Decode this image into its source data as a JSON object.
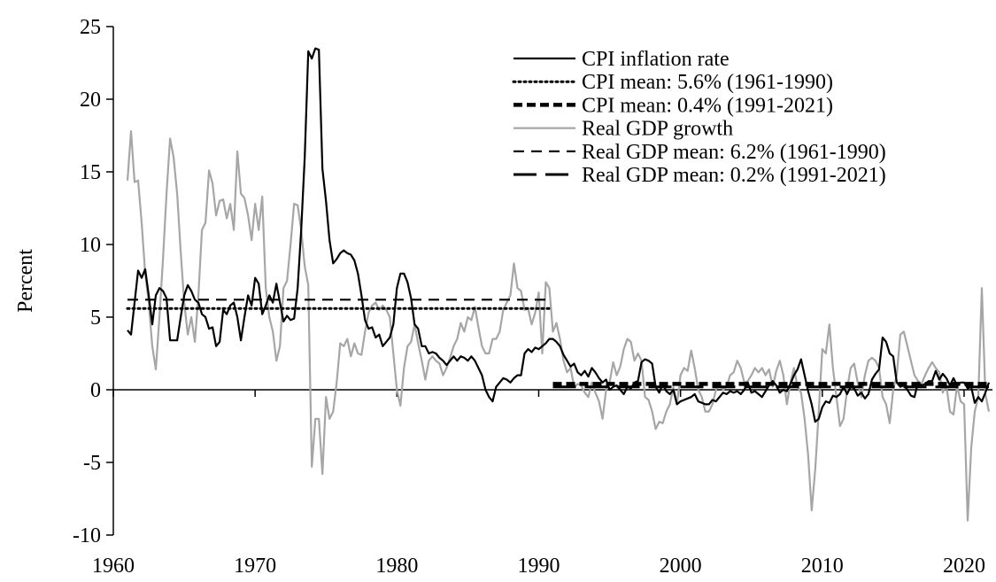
{
  "chart_data": {
    "type": "line",
    "ylabel": "Percent",
    "xlim": [
      1960,
      2022
    ],
    "ylim": [
      -10,
      25
    ],
    "xticks": [
      1960,
      1970,
      1980,
      1990,
      2000,
      2010,
      2020
    ],
    "yticks": [
      -10,
      -5,
      0,
      5,
      10,
      15,
      20,
      25
    ],
    "legend": "upper right",
    "x": [
      1961,
      1961.25,
      1961.5,
      1961.75,
      1962,
      1962.25,
      1962.5,
      1962.75,
      1963,
      1963.25,
      1963.5,
      1963.75,
      1964,
      1964.25,
      1964.5,
      1964.75,
      1965,
      1965.25,
      1965.5,
      1965.75,
      1966,
      1966.25,
      1966.5,
      1966.75,
      1967,
      1967.25,
      1967.5,
      1967.75,
      1968,
      1968.25,
      1968.5,
      1968.75,
      1969,
      1969.25,
      1969.5,
      1969.75,
      1970,
      1970.25,
      1970.5,
      1970.75,
      1971,
      1971.25,
      1971.5,
      1971.75,
      1972,
      1972.25,
      1972.5,
      1972.75,
      1973,
      1973.25,
      1973.5,
      1973.75,
      1974,
      1974.25,
      1974.5,
      1974.75,
      1975,
      1975.25,
      1975.5,
      1975.75,
      1976,
      1976.25,
      1976.5,
      1976.75,
      1977,
      1977.25,
      1977.5,
      1977.75,
      1978,
      1978.25,
      1978.5,
      1978.75,
      1979,
      1979.25,
      1979.5,
      1979.75,
      1980,
      1980.25,
      1980.5,
      1980.75,
      1981,
      1981.25,
      1981.5,
      1981.75,
      1982,
      1982.25,
      1982.5,
      1982.75,
      1983,
      1983.25,
      1983.5,
      1983.75,
      1984,
      1984.25,
      1984.5,
      1984.75,
      1985,
      1985.25,
      1985.5,
      1985.75,
      1986,
      1986.25,
      1986.5,
      1986.75,
      1987,
      1987.25,
      1987.5,
      1987.75,
      1988,
      1988.25,
      1988.5,
      1988.75,
      1989,
      1989.25,
      1989.5,
      1989.75,
      1990,
      1990.25,
      1990.5,
      1990.75,
      1991,
      1991.25,
      1991.5,
      1991.75,
      1992,
      1992.25,
      1992.5,
      1992.75,
      1993,
      1993.25,
      1993.5,
      1993.75,
      1994,
      1994.25,
      1994.5,
      1994.75,
      1995,
      1995.25,
      1995.5,
      1995.75,
      1996,
      1996.25,
      1996.5,
      1996.75,
      1997,
      1997.25,
      1997.5,
      1997.75,
      1998,
      1998.25,
      1998.5,
      1998.75,
      1999,
      1999.25,
      1999.5,
      1999.75,
      2000,
      2000.25,
      2000.5,
      2000.75,
      2001,
      2001.25,
      2001.5,
      2001.75,
      2002,
      2002.25,
      2002.5,
      2002.75,
      2003,
      2003.25,
      2003.5,
      2003.75,
      2004,
      2004.25,
      2004.5,
      2004.75,
      2005,
      2005.25,
      2005.5,
      2005.75,
      2006,
      2006.25,
      2006.5,
      2006.75,
      2007,
      2007.25,
      2007.5,
      2007.75,
      2008,
      2008.25,
      2008.5,
      2008.75,
      2009,
      2009.25,
      2009.5,
      2009.75,
      2010,
      2010.25,
      2010.5,
      2010.75,
      2011,
      2011.25,
      2011.5,
      2011.75,
      2012,
      2012.25,
      2012.5,
      2012.75,
      2013,
      2013.25,
      2013.5,
      2013.75,
      2014,
      2014.25,
      2014.5,
      2014.75,
      2015,
      2015.25,
      2015.5,
      2015.75,
      2016,
      2016.25,
      2016.5,
      2016.75,
      2017,
      2017.25,
      2017.5,
      2017.75,
      2018,
      2018.25,
      2018.5,
      2018.75,
      2019,
      2019.25,
      2019.5,
      2019.75,
      2020,
      2020.25,
      2020.5,
      2020.75,
      2021,
      2021.25,
      2021.5,
      2021.75
    ],
    "series": [
      {
        "name": "CPI inflation rate",
        "color": "#000000",
        "style": "solid",
        "values": [
          4.1,
          3.8,
          6.0,
          8.2,
          7.7,
          8.3,
          6.5,
          4.5,
          6.5,
          7.0,
          6.8,
          6.3,
          3.4,
          3.4,
          3.4,
          5.0,
          6.5,
          7.2,
          6.8,
          6.2,
          6.0,
          5.2,
          5.0,
          4.2,
          4.3,
          3.0,
          3.3,
          5.5,
          5.2,
          5.8,
          6.0,
          5.0,
          3.4,
          5.0,
          6.5,
          5.8,
          7.7,
          7.3,
          5.2,
          5.8,
          6.5,
          6.0,
          7.3,
          6.0,
          4.7,
          5.1,
          4.8,
          4.9,
          7.0,
          11.0,
          16.0,
          23.3,
          22.8,
          23.5,
          23.4,
          15.2,
          13.0,
          10.3,
          8.7,
          9.0,
          9.4,
          9.6,
          9.4,
          9.3,
          8.9,
          8.0,
          6.5,
          4.8,
          4.2,
          4.3,
          3.6,
          3.8,
          3.0,
          3.3,
          3.6,
          4.5,
          7.0,
          8.0,
          8.0,
          7.4,
          6.3,
          4.5,
          4.2,
          3.0,
          3.0,
          2.5,
          2.6,
          2.5,
          2.2,
          2.0,
          1.7,
          2.0,
          2.3,
          2.0,
          2.3,
          2.2,
          2.0,
          2.3,
          2.0,
          1.5,
          1.0,
          0.0,
          -0.5,
          -0.8,
          0.2,
          0.5,
          0.8,
          0.7,
          0.5,
          0.8,
          1.0,
          1.0,
          2.5,
          2.8,
          2.6,
          2.9,
          2.8,
          3.0,
          3.2,
          3.5,
          3.5,
          3.3,
          3.0,
          2.4,
          2.0,
          1.6,
          1.8,
          1.2,
          1.0,
          1.3,
          0.9,
          1.5,
          1.2,
          0.8,
          0.5,
          0.7,
          0.0,
          0.2,
          0.3,
          0.0,
          -0.3,
          0.2,
          0.1,
          0.5,
          0.6,
          1.9,
          2.1,
          2.0,
          1.8,
          0.2,
          -0.2,
          0.4,
          -0.1,
          -0.3,
          0.0,
          -1.0,
          -0.8,
          -0.7,
          -0.6,
          -0.5,
          -0.3,
          -0.8,
          -0.9,
          -1.0,
          -1.0,
          -0.7,
          -0.8,
          -0.5,
          -0.2,
          -0.3,
          -0.1,
          -0.2,
          -0.1,
          -0.3,
          0.0,
          0.5,
          -0.2,
          -0.1,
          -0.3,
          -0.5,
          -0.1,
          0.3,
          0.6,
          0.3,
          -0.2,
          0.0,
          -0.1,
          0.4,
          1.0,
          1.4,
          2.1,
          1.0,
          -0.1,
          -1.0,
          -2.2,
          -2.0,
          -1.2,
          -0.8,
          -0.9,
          -0.4,
          -0.5,
          -0.3,
          0.2,
          -0.3,
          0.2,
          0.1,
          -0.4,
          -0.2,
          -0.6,
          -0.3,
          0.7,
          1.1,
          1.4,
          3.6,
          3.3,
          2.5,
          2.3,
          0.5,
          0.2,
          0.3,
          0.0,
          -0.4,
          -0.5,
          0.5,
          0.3,
          0.4,
          0.6,
          0.6,
          1.3,
          0.7,
          1.1,
          0.8,
          0.3,
          0.8,
          0.3,
          0.5,
          0.5,
          0.1,
          0.2,
          -0.9,
          -0.5,
          -0.8,
          -0.2,
          0.5
        ]
      },
      {
        "name": "CPI mean: 5.6% (1961-1990)",
        "color": "#000000",
        "style": "dotted",
        "x": [
          1961,
          1990.75
        ],
        "values": [
          5.6,
          5.6
        ]
      },
      {
        "name": "CPI mean: 0.4% (1991-2021)",
        "color": "#000000",
        "style": "bold-dashed",
        "x": [
          1991,
          2021.75
        ],
        "values": [
          0.4,
          0.4
        ]
      },
      {
        "name": "Real GDP growth",
        "color": "#a6a6a6",
        "style": "solid",
        "values": [
          14.4,
          17.8,
          14.3,
          14.4,
          11.5,
          8.0,
          6.0,
          3.0,
          1.4,
          5.0,
          9.0,
          13.5,
          17.3,
          16.0,
          13.5,
          9.5,
          6.0,
          3.8,
          5.0,
          3.3,
          6.5,
          11.0,
          11.5,
          15.1,
          14.2,
          12.0,
          13.0,
          13.1,
          11.8,
          12.8,
          11.0,
          16.4,
          13.5,
          13.2,
          12.0,
          10.3,
          12.8,
          11.0,
          13.3,
          7.0,
          5.0,
          4.0,
          2.0,
          3.0,
          7.0,
          7.5,
          10.0,
          12.8,
          12.7,
          11.0,
          8.5,
          7.2,
          -5.3,
          -2.0,
          -2.0,
          -5.8,
          -0.5,
          -2.0,
          -1.5,
          0.5,
          3.2,
          3.0,
          3.5,
          2.3,
          3.2,
          2.5,
          2.4,
          4.0,
          5.3,
          5.8,
          6.0,
          5.5,
          5.8,
          5.5,
          5.0,
          2.5,
          0.0,
          -1.1,
          1.5,
          3.0,
          3.3,
          4.5,
          3.2,
          2.0,
          0.7,
          2.0,
          2.3,
          2.0,
          1.8,
          1.0,
          1.5,
          2.2,
          3.0,
          3.5,
          4.6,
          4.0,
          5.0,
          4.8,
          5.7,
          4.3,
          3.0,
          2.5,
          2.5,
          3.5,
          3.5,
          4.0,
          5.5,
          6.0,
          6.5,
          8.7,
          7.0,
          6.8,
          5.5,
          5.6,
          4.5,
          5.3,
          6.7,
          2.5,
          7.4,
          7.0,
          4.0,
          4.6,
          3.5,
          2.0,
          1.2,
          1.5,
          0.2,
          0.4,
          0.3,
          -0.2,
          -0.5,
          0.5,
          -0.2,
          -0.8,
          -2.0,
          0.0,
          0.5,
          1.9,
          1.0,
          1.6,
          2.8,
          3.5,
          3.3,
          2.0,
          2.5,
          2.0,
          -0.5,
          -0.7,
          -1.5,
          -2.7,
          -2.2,
          -2.3,
          -1.5,
          -1.0,
          0.2,
          -1.0,
          1.0,
          1.5,
          1.3,
          2.7,
          1.5,
          0.0,
          -0.5,
          -1.5,
          -1.5,
          -1.0,
          0.0,
          0.5,
          0.0,
          0.2,
          1.0,
          1.2,
          2.0,
          1.5,
          0.5,
          0.6,
          1.0,
          1.5,
          1.2,
          1.5,
          1.0,
          1.4,
          0.2,
          1.3,
          2.0,
          1.0,
          -1.0,
          0.5,
          1.5,
          0.2,
          -0.2,
          -2.0,
          -4.5,
          -8.3,
          -5.5,
          -1.5,
          2.8,
          2.5,
          4.5,
          1.5,
          -0.5,
          -2.5,
          -2.0,
          0.0,
          1.5,
          1.8,
          0.5,
          -0.5,
          1.0,
          2.0,
          2.2,
          2.0,
          1.5,
          -0.5,
          -1.0,
          -2.3,
          0.0,
          1.0,
          3.8,
          4.0,
          3.0,
          2.0,
          1.0,
          0.6,
          0.4,
          1.0,
          1.5,
          1.9,
          1.5,
          1.2,
          -0.2,
          0.3,
          -1.5,
          -1.7,
          0.3,
          -0.8,
          -1.0,
          -9.0,
          -4.0,
          -1.5,
          -0.5,
          7.0,
          -0.3,
          -1.5
        ]
      },
      {
        "name": "Real GDP mean: 6.2% (1961-1990)",
        "color": "#000000",
        "style": "dashed",
        "x": [
          1961,
          1990.75
        ],
        "values": [
          6.2,
          6.2
        ]
      },
      {
        "name": "Real GDP mean: 0.2% (1991-2021)",
        "color": "#000000",
        "style": "long-dashed",
        "x": [
          1991,
          2021.75
        ],
        "values": [
          0.2,
          0.2
        ]
      }
    ]
  }
}
